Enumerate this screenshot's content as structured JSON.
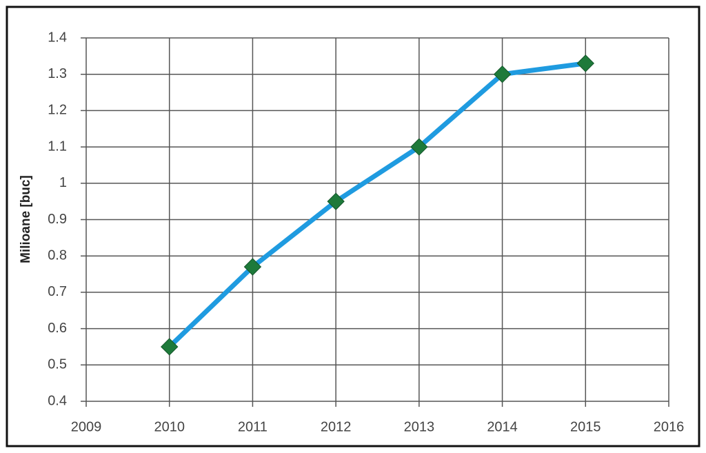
{
  "chart_data": {
    "type": "line",
    "y_label": "Milioane [buc]",
    "x": [
      2010,
      2011,
      2012,
      2013,
      2014,
      2015
    ],
    "series": [
      {
        "name": "Milioane [buc]",
        "color": "#1f9be0",
        "marker_color": "#1e7a3a",
        "values": [
          0.55,
          0.77,
          0.95,
          1.1,
          1.3,
          1.33
        ]
      }
    ],
    "xlim": [
      2009,
      2016
    ],
    "xticks": [
      2009,
      2010,
      2011,
      2012,
      2013,
      2014,
      2015,
      2016
    ],
    "ylim": [
      0.4,
      1.4
    ],
    "yticks": [
      0.4,
      0.5,
      0.6,
      0.7,
      0.8,
      0.9,
      1,
      1.1,
      1.2,
      1.3,
      1.4
    ],
    "grid": true
  }
}
